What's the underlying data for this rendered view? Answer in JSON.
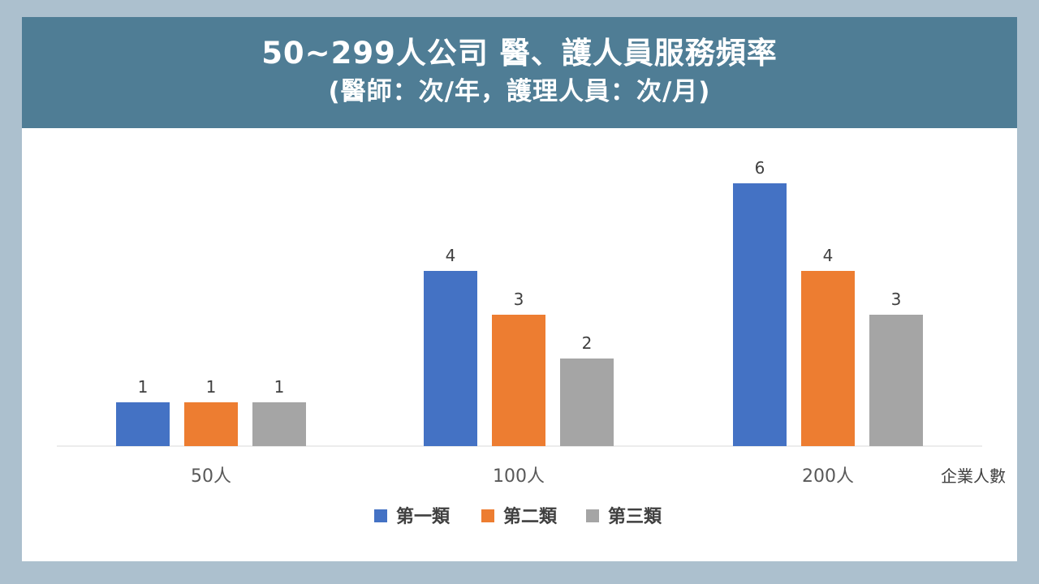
{
  "header": {
    "title": "50~299人公司 醫、護人員服務頻率",
    "subtitle": "(醫師：次/年，護理人員：次/月)"
  },
  "colors": {
    "banner": "#4f7d95",
    "page_background": "#acc0ce",
    "series": [
      "#4472c4",
      "#ed7d31",
      "#a5a5a5"
    ]
  },
  "chart_data": {
    "type": "bar",
    "categories": [
      "50人",
      "100人",
      "200人"
    ],
    "series": [
      {
        "name": "第一類",
        "values": [
          1,
          4,
          6
        ]
      },
      {
        "name": "第二類",
        "values": [
          1,
          3,
          4
        ]
      },
      {
        "name": "第三類",
        "values": [
          1,
          2,
          3
        ]
      }
    ],
    "xlabel": "企業人數",
    "ylabel": "",
    "ylim": [
      0,
      6
    ],
    "grid": false,
    "legend": "bottom",
    "data_labels": true
  }
}
